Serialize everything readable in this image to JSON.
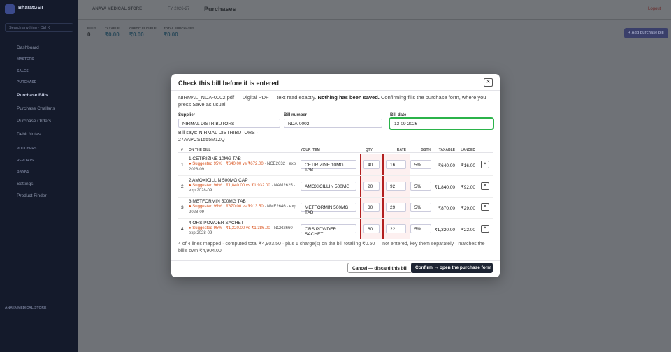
{
  "sidebar": {
    "brand": "BharatGST",
    "search": "Search anything · Ctrl K",
    "items": [
      "Dashboard",
      "MASTERS",
      "SALES",
      "PURCHASE",
      "Purchase Bills",
      "Purchase Challans",
      "Purchase Orders",
      "Debit Notes",
      "VOUCHERS",
      "REPORTS",
      "BANKS",
      "Settings",
      "Product Finder"
    ],
    "store": "ANAYA MEDICAL STORE"
  },
  "topbar": {
    "store": "ANAYA MEDICAL STORE",
    "fy": "FY 2026-27",
    "page": "Purchases",
    "logout": "Logout"
  },
  "stats": [
    {
      "label": "BILLS",
      "value": "0"
    },
    {
      "label": "TAXABLE",
      "value": "₹0.00"
    },
    {
      "label": "CREDIT ELIGIBLE",
      "value": "₹0.00"
    },
    {
      "label": "TOTAL PURCHASES",
      "value": "₹0.00"
    }
  ],
  "actions": {
    "add": "+ Add purchase bill"
  },
  "modal": {
    "title": "Check this bill before it is entered",
    "close": "✕",
    "intro": {
      "lead": "NIRMAL_NDA-0002.pdf — Digital PDF — text read exactly.",
      "bold": "Nothing has been saved.",
      "rest": "Confirming fills the purchase form, where you press Save as usual."
    },
    "supplier": {
      "label": "Supplier",
      "value": "NIRMAL DISTRIBUTORS"
    },
    "bill_number": {
      "label": "Bill number",
      "value": "NDA-0002"
    },
    "bill_date": {
      "label": "Bill date",
      "value": "13-09-2026"
    },
    "bill_says": "Bill says: NIRMAL DISTRIBUTORS · 27AAPCS1555M1ZQ",
    "headers": [
      "#",
      "ON THE BILL",
      "YOUR ITEM",
      "QTY",
      "RATE",
      "GST%",
      "TAXABLE",
      "LANDED"
    ],
    "rows": [
      {
        "n": "1",
        "name": "1 CETIRIZINE 10MG TAB",
        "suggest": "● Suggested 95% · ₹640.00 vs ₹672.00",
        "code": "· NCE2632 · exp 2028-09",
        "item": "CETIRIZINE 10MG TAB",
        "qty": "40",
        "rate": "16",
        "gst": "5%",
        "taxable": "₹640.00",
        "landed": "₹16.00"
      },
      {
        "n": "2",
        "name": "2 AMOXICILLIN 500MG CAP",
        "suggest": "● Suggested 96% · ₹1,840.00 vs ₹1,932.00",
        "code": "· NAM2625 · exp 2028-09",
        "item": "AMOXICILLIN 500MG",
        "qty": "20",
        "rate": "92",
        "gst": "5%",
        "taxable": "₹1,840.00",
        "landed": "₹92.00"
      },
      {
        "n": "3",
        "name": "3 METFORMIN 500MG TAB",
        "suggest": "● Suggested 95% · ₹870.00 vs ₹913.50",
        "code": "· NME2646 · exp 2028-09",
        "item": "METFORMIN 500MG TAB",
        "qty": "30",
        "rate": "29",
        "gst": "5%",
        "taxable": "₹870.00",
        "landed": "₹29.00"
      },
      {
        "n": "4",
        "name": "4 ORS POWDER SACHET",
        "suggest": "● Suggested 95% · ₹1,320.00 vs ₹1,386.00",
        "code": "· NOR2660 · exp 2028-09",
        "item": "ORS POWDER SACHET",
        "qty": "60",
        "rate": "22",
        "gst": "5%",
        "taxable": "₹1,320.00",
        "landed": "₹22.00"
      }
    ],
    "summary": "4 of 4 lines mapped · computed total ₹4,903.50 · plus 1 charge(s) on the bill totalling ₹0.50 — not entered, key them separately · matches the bill's own ₹4,904.00",
    "cancel": "Cancel — discard this bill",
    "confirm": "Confirm → open the purchase form"
  }
}
